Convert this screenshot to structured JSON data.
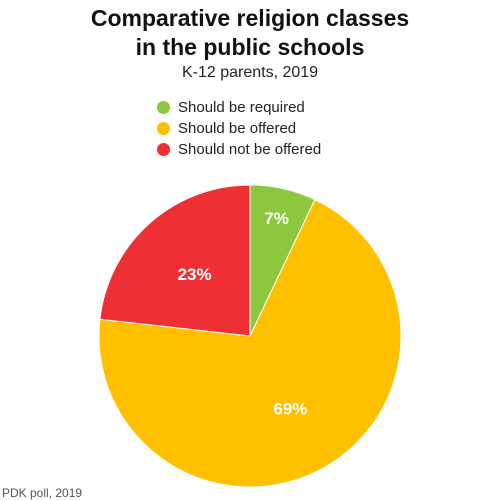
{
  "chart_data": {
    "type": "pie",
    "title": [
      "Comparative religion classes",
      "in the public schools"
    ],
    "subtitle": "K-12 parents, 2019",
    "legend_placement": "top-center",
    "slices": [
      {
        "label": "Should be required",
        "value": 7,
        "value_label": "7%",
        "color": "#8dc63f"
      },
      {
        "label": "Should be offered",
        "value": 69,
        "value_label": "69%",
        "color": "#ffc000"
      },
      {
        "label": "Should not be offered",
        "value": 23,
        "value_label": "23%",
        "color": "#ee3035"
      }
    ],
    "source": "PDK poll, 2019"
  }
}
